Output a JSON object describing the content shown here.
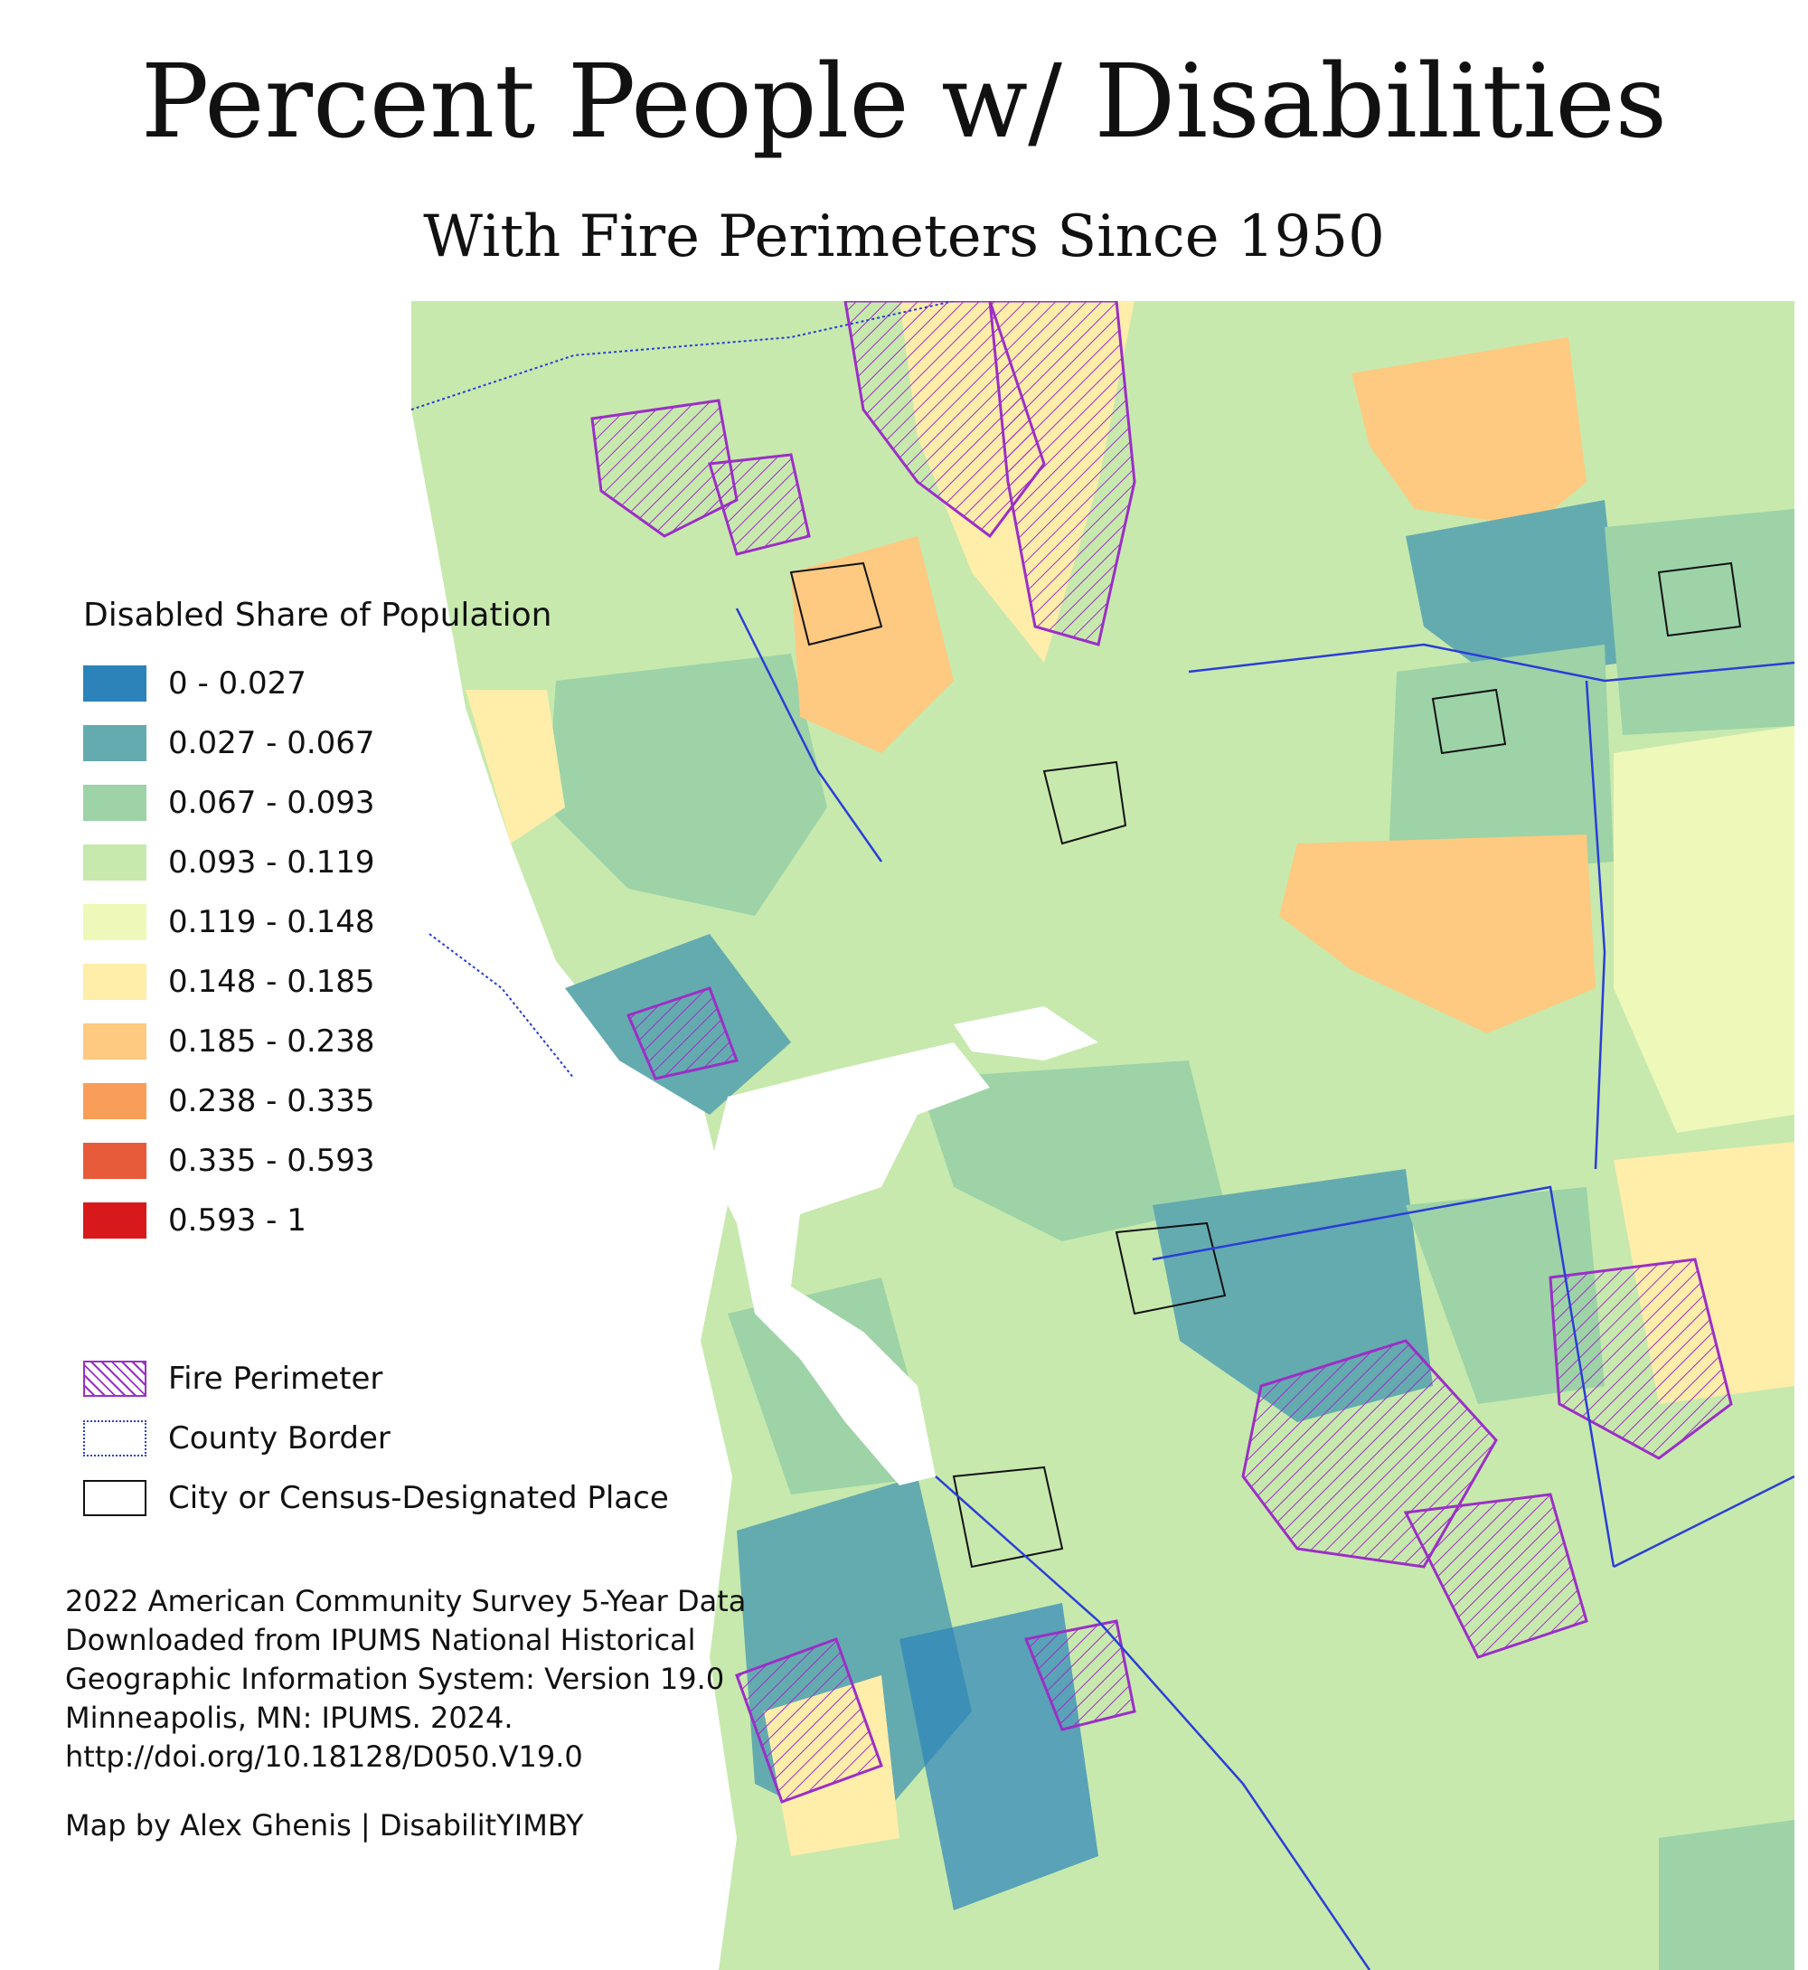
{
  "title": "Percent People w/ Disabilities",
  "subtitle": "With Fire Perimeters Since 1950",
  "legend": {
    "title": "Disabled Share of Population",
    "classes": [
      {
        "label": "0 - 0.027",
        "color": "#2b83ba"
      },
      {
        "label": "0.027 - 0.067",
        "color": "#64abb0"
      },
      {
        "label": "0.067 - 0.093",
        "color": "#9dd3a7"
      },
      {
        "label": "0.093 - 0.119",
        "color": "#c7e9ad"
      },
      {
        "label": "0.119 - 0.148",
        "color": "#edf8b9"
      },
      {
        "label": "0.148 - 0.185",
        "color": "#ffedaa"
      },
      {
        "label": "0.185 - 0.238",
        "color": "#fec980"
      },
      {
        "label": "0.238 - 0.335",
        "color": "#f99e59"
      },
      {
        "label": "0.335 - 0.593",
        "color": "#e85b3a"
      },
      {
        "label": "0.593 - 1",
        "color": "#d7191c"
      }
    ]
  },
  "overlays": {
    "fire": {
      "label": "Fire Perimeter",
      "color": "#9b2fc6"
    },
    "county": {
      "label": "County Border",
      "color": "#2a3ed6"
    },
    "city": {
      "label": "City or Census-Designated Place",
      "color": "#111111"
    }
  },
  "source": {
    "line1": "2022 American Community Survey 5-Year Data",
    "line2": "Downloaded from IPUMS National Historical",
    "line3": "Geographic Information System: Version 19.0",
    "line4": "Minneapolis, MN: IPUMS. 2024.",
    "line5": "http://doi.org/10.18128/D050.V19.0"
  },
  "credit": "Map by Alex Ghenis | DisabilitYIMBY"
}
